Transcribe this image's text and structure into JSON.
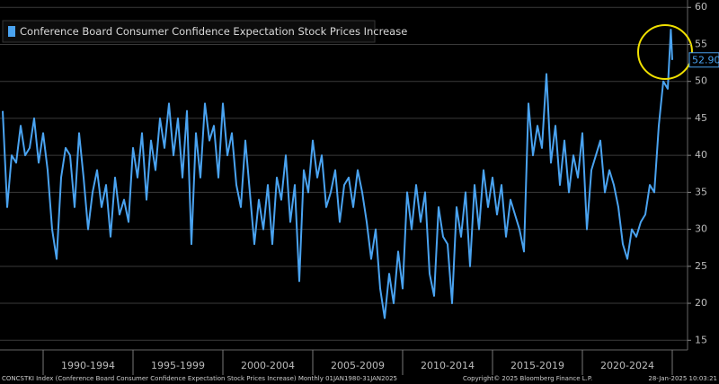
{
  "chart_data": {
    "type": "line",
    "series": [
      {
        "name": "Conference Board Consumer Confidence Expectation Stock Prices Increase",
        "color": "#4aa3f0",
        "x": [
          1987.75,
          1988,
          1988.25,
          1988.5,
          1988.75,
          1989,
          1989.25,
          1989.5,
          1989.75,
          1990,
          1990.25,
          1990.5,
          1990.75,
          1991,
          1991.25,
          1991.5,
          1991.75,
          1992,
          1992.25,
          1992.5,
          1992.75,
          1993,
          1993.25,
          1993.5,
          1993.75,
          1994,
          1994.25,
          1994.5,
          1994.75,
          1995,
          1995.25,
          1995.5,
          1995.75,
          1996,
          1996.25,
          1996.5,
          1996.75,
          1997,
          1997.25,
          1997.5,
          1997.75,
          1998,
          1998.25,
          1998.5,
          1998.75,
          1999,
          1999.25,
          1999.5,
          1999.75,
          2000,
          2000.25,
          2000.5,
          2000.75,
          2001,
          2001.25,
          2001.5,
          2001.75,
          2002,
          2002.25,
          2002.5,
          2002.75,
          2003,
          2003.25,
          2003.5,
          2003.75,
          2004,
          2004.25,
          2004.5,
          2004.75,
          2005,
          2005.25,
          2005.5,
          2005.75,
          2006,
          2006.25,
          2006.5,
          2006.75,
          2007,
          2007.25,
          2007.5,
          2007.75,
          2008,
          2008.25,
          2008.5,
          2008.75,
          2009,
          2009.25,
          2009.5,
          2009.75,
          2010,
          2010.25,
          2010.5,
          2010.75,
          2011,
          2011.25,
          2011.5,
          2011.75,
          2012,
          2012.25,
          2012.5,
          2012.75,
          2013,
          2013.25,
          2013.5,
          2013.75,
          2014,
          2014.25,
          2014.5,
          2014.75,
          2015,
          2015.25,
          2015.5,
          2015.75,
          2016,
          2016.25,
          2016.5,
          2016.75,
          2017,
          2017.25,
          2017.5,
          2017.75,
          2018,
          2018.25,
          2018.5,
          2018.75,
          2019,
          2019.25,
          2019.5,
          2019.75,
          2020,
          2020.25,
          2020.5,
          2020.75,
          2021,
          2021.25,
          2021.5,
          2021.75,
          2022,
          2022.25,
          2022.5,
          2022.75,
          2023,
          2023.25,
          2023.5,
          2023.75,
          2024,
          2024.25,
          2024.5,
          2024.75,
          2024.92,
          2025
        ],
        "values": [
          46,
          33,
          40,
          39,
          44,
          40,
          41,
          45,
          39,
          43,
          38,
          30,
          26,
          37,
          41,
          40,
          33,
          43,
          37,
          30,
          35,
          38,
          33,
          36,
          29,
          37,
          32,
          34,
          31,
          41,
          37,
          43,
          34,
          42,
          38,
          45,
          41,
          47,
          40,
          45,
          37,
          46,
          28,
          43,
          37,
          47,
          42,
          44,
          37,
          47,
          40,
          43,
          36,
          33,
          42,
          35,
          28,
          34,
          30,
          36,
          28,
          37,
          34,
          40,
          31,
          36,
          23,
          38,
          35,
          42,
          37,
          40,
          33,
          35,
          38,
          31,
          36,
          37,
          33,
          38,
          35,
          31,
          26,
          30,
          22,
          18,
          24,
          20,
          27,
          22,
          35,
          30,
          36,
          31,
          35,
          24,
          21,
          33,
          29,
          28,
          20,
          33,
          29,
          35,
          25,
          36,
          30,
          38,
          33,
          37,
          32,
          36,
          29,
          34,
          32,
          30,
          27,
          47,
          40,
          44,
          41,
          51,
          39,
          44,
          36,
          42,
          35,
          40,
          37,
          43,
          30,
          38,
          40,
          42,
          35,
          38,
          36,
          33,
          28,
          26,
          30,
          29,
          31,
          32,
          36,
          35,
          44,
          50,
          49,
          57,
          52.9
        ]
      }
    ],
    "last_value": {
      "value": 52.9,
      "label": "52.90"
    },
    "xlim": [
      1987.6,
      2025.85
    ],
    "ylim": [
      13.7,
      61
    ],
    "xticks": [
      {
        "value": 1992.5,
        "label": "1990-1994"
      },
      {
        "value": 1997.5,
        "label": "1995-1999"
      },
      {
        "value": 2002.5,
        "label": "2000-2004"
      },
      {
        "value": 2007.5,
        "label": "2005-2009"
      },
      {
        "value": 2012.5,
        "label": "2010-2014"
      },
      {
        "value": 2017.5,
        "label": "2015-2019"
      },
      {
        "value": 2022.5,
        "label": "2020-2024"
      }
    ],
    "yticks": [
      15,
      20,
      25,
      30,
      35,
      40,
      45,
      50,
      55,
      60
    ],
    "grid": true,
    "footer": {
      "left": "CONCSTKI Index (Conference Board Consumer Confidence Expectation Stock Prices Increase)  Monthly 01JAN1980-31JAN2025",
      "center": "Copyright© 2025 Bloomberg Finance L.P.",
      "right": "28-Jan-2025 10:03:21"
    }
  }
}
